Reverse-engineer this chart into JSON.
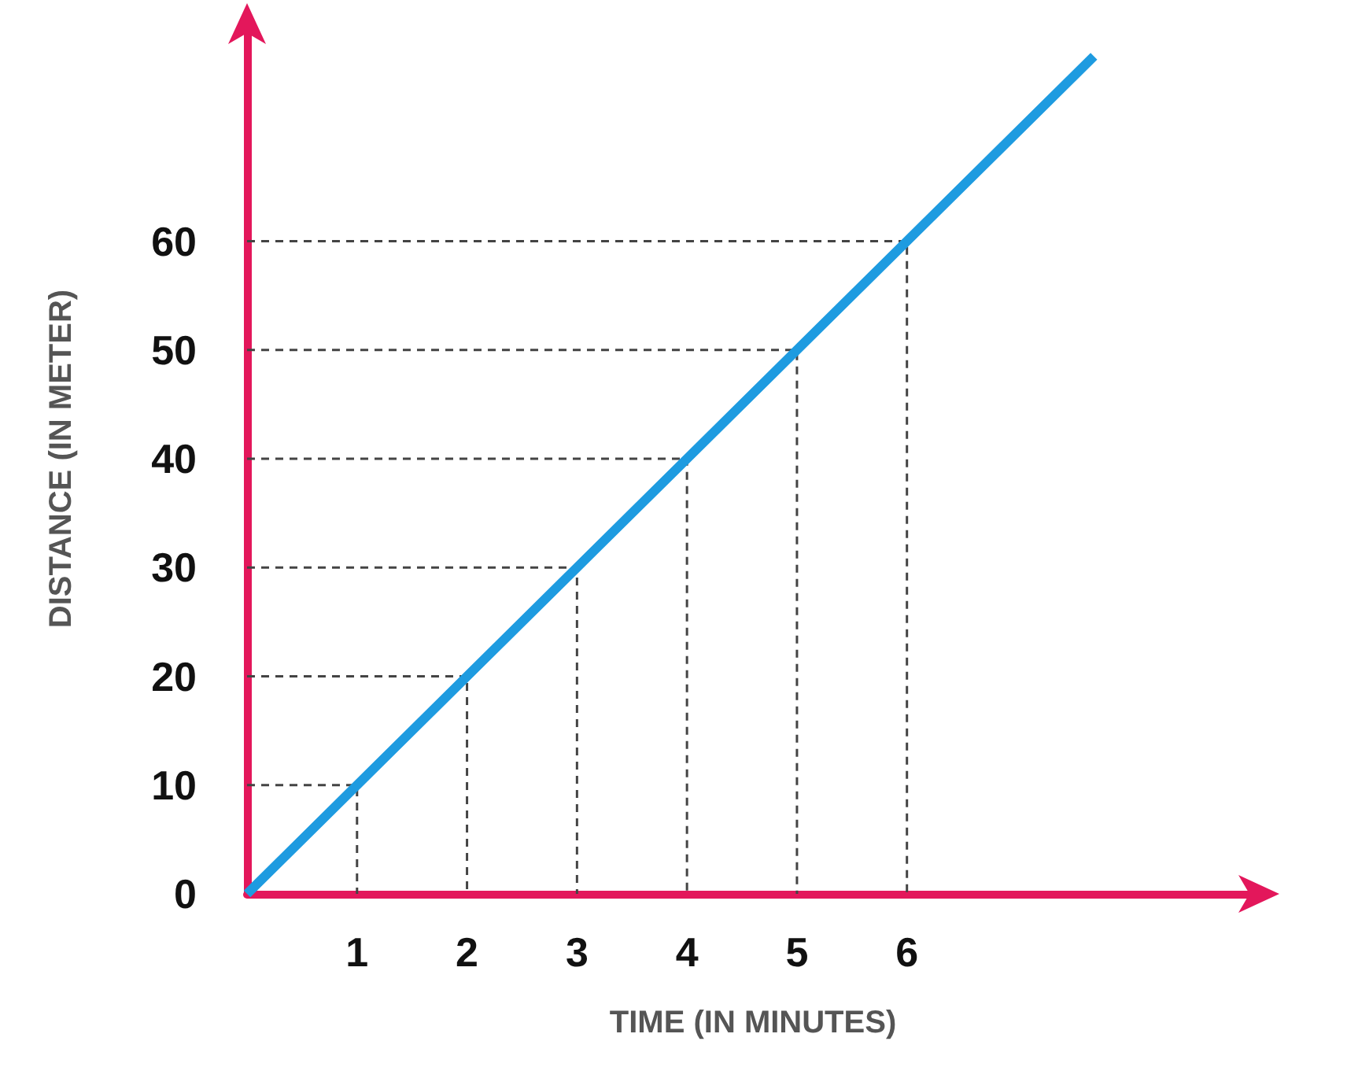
{
  "chart_data": {
    "type": "line",
    "xlabel": "TIME (IN MINUTES)",
    "ylabel": "DISTANCE (IN METER)",
    "x": [
      0,
      1,
      2,
      3,
      4,
      5,
      6,
      7.7
    ],
    "series": [
      {
        "color": "#1e9be0",
        "values": [
          0,
          10,
          20,
          30,
          40,
          50,
          60,
          77
        ]
      },
      {
        "color": "#444444",
        "line_style": "dashed",
        "x": [
          0,
          1,
          1
        ],
        "values": [
          10,
          10,
          0
        ]
      },
      {
        "color": "#444444",
        "line_style": "dashed",
        "x": [
          0,
          2,
          2
        ],
        "values": [
          20,
          20,
          0
        ]
      },
      {
        "color": "#444444",
        "line_style": "dashed",
        "x": [
          0,
          3,
          3
        ],
        "values": [
          30,
          30,
          0
        ]
      },
      {
        "color": "#444444",
        "line_style": "dashed",
        "x": [
          0,
          4,
          4
        ],
        "values": [
          40,
          40,
          0
        ]
      },
      {
        "color": "#444444",
        "line_style": "dashed",
        "x": [
          0,
          5,
          5
        ],
        "values": [
          50,
          50,
          0
        ]
      },
      {
        "color": "#444444",
        "line_style": "dashed",
        "x": [
          0,
          6,
          6
        ],
        "values": [
          60,
          60,
          0
        ]
      }
    ],
    "xlim": [
      0,
      9.2
    ],
    "ylim": [
      0,
      80
    ],
    "xticks": [
      1,
      2,
      3,
      4,
      5,
      6
    ],
    "yticks": [
      0,
      10,
      20,
      30,
      40,
      50,
      60
    ],
    "marker": "none",
    "line_style": "solid"
  }
}
